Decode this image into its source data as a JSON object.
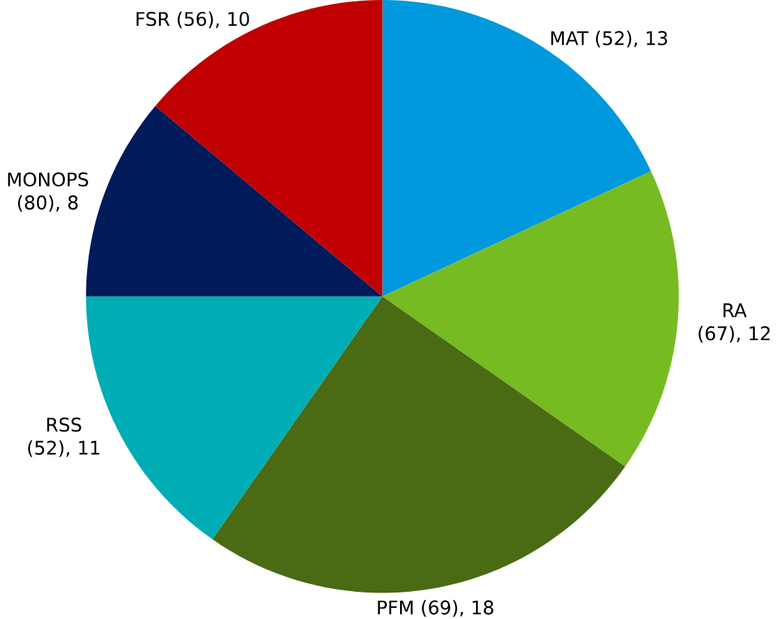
{
  "chart_data": {
    "type": "pie",
    "categories": [
      "MAT (52), 13",
      "RA (67), 12",
      "PFM (69), 18",
      "RSS (52), 11",
      "MONOPS (80), 8",
      "FSR (56), 10"
    ],
    "values": [
      13,
      12,
      18,
      11,
      8,
      10
    ],
    "colors": [
      "#0099dd",
      "#77bb22",
      "#4a6a14",
      "#00adb5",
      "#001a5a",
      "#c00000"
    ]
  }
}
